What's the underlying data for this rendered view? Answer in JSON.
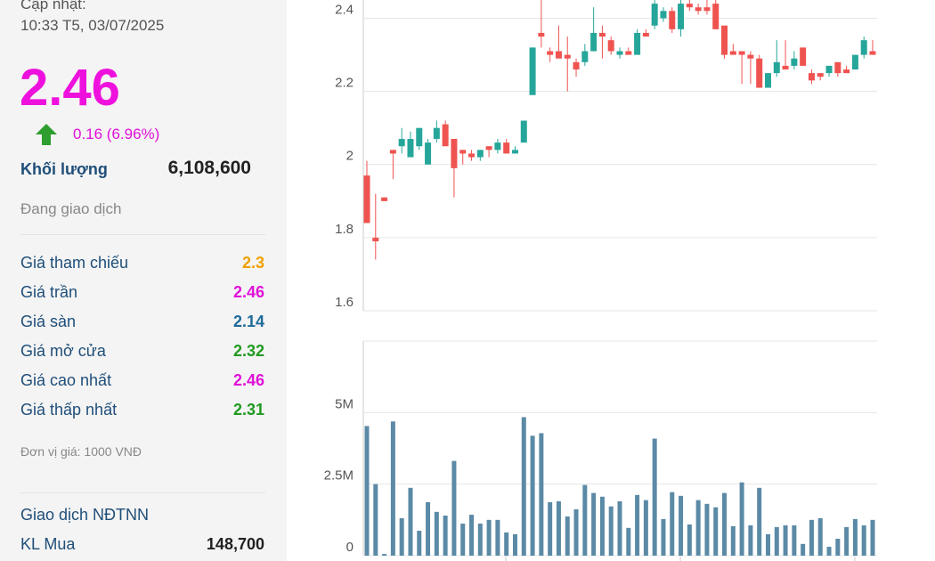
{
  "panel": {
    "updated_label": "Cập nhật:",
    "updated_time": "10:33 T5, 03/07/2025",
    "price": "2.46",
    "price_color": "#ee11dd",
    "change": "0.16 (6.96%)",
    "volume_label": "Khối lượng",
    "volume": "6,108,600",
    "status": "Đang giao dịch",
    "rows": [
      {
        "label": "Giá tham chiếu",
        "value": "2.3",
        "color": "#f0a000"
      },
      {
        "label": "Giá trần",
        "value": "2.46",
        "color": "#e010d8"
      },
      {
        "label": "Giá sàn",
        "value": "2.14",
        "color": "#1e6b9a"
      },
      {
        "label": "Giá mở cửa",
        "value": "2.32",
        "color": "#1f9a1f"
      },
      {
        "label": "Giá cao nhất",
        "value": "2.46",
        "color": "#e010d8"
      },
      {
        "label": "Giá thấp nhất",
        "value": "2.31",
        "color": "#1f9a1f"
      }
    ],
    "unit_note": "Đơn vị giá: 1000 VNĐ",
    "foreign_title": "Giao dịch NĐTNN",
    "foreign_buy_label": "KL Mua",
    "foreign_buy": "148,700"
  },
  "chart_data": [
    {
      "type": "candlestick",
      "up_color": "#26a69a",
      "down_color": "#ef5350",
      "ylim": [
        1.6,
        2.45
      ],
      "yticks": [
        1.6,
        1.8,
        2,
        2.2,
        2.4
      ],
      "grid": true,
      "open": [
        1.97,
        1.8,
        1.91,
        2.04,
        2.05,
        2.02,
        2.05,
        2.0,
        2.07,
        2.11,
        2.07,
        2.04,
        2.03,
        2.02,
        2.05,
        2.04,
        2.06,
        2.03,
        2.06,
        2.19,
        2.36,
        2.31,
        2.31,
        2.3,
        2.28,
        2.28,
        2.31,
        2.36,
        2.34,
        2.3,
        2.31,
        2.3,
        2.36,
        2.38,
        2.4,
        2.42,
        2.37,
        2.44,
        2.43,
        2.43,
        2.44,
        2.38,
        2.31,
        2.31,
        2.3,
        2.29,
        2.21,
        2.25,
        2.27,
        2.27,
        2.32,
        2.25,
        2.25,
        2.25,
        2.28,
        2.26,
        2.26,
        2.3,
        2.31
      ],
      "high": [
        2.01,
        1.92,
        1.91,
        2.04,
        2.1,
        2.09,
        2.1,
        2.07,
        2.12,
        2.12,
        2.07,
        2.04,
        2.04,
        2.04,
        2.05,
        2.07,
        2.07,
        2.05,
        2.12,
        2.32,
        2.45,
        2.32,
        2.38,
        2.35,
        2.29,
        2.33,
        2.43,
        2.38,
        2.35,
        2.32,
        2.32,
        2.37,
        2.37,
        2.45,
        2.43,
        2.43,
        2.45,
        2.45,
        2.44,
        2.45,
        2.45,
        2.38,
        2.33,
        2.31,
        2.31,
        2.3,
        2.25,
        2.34,
        2.34,
        2.31,
        2.32,
        2.26,
        2.25,
        2.27,
        2.28,
        2.27,
        2.3,
        2.35,
        2.34
      ],
      "low": [
        1.84,
        1.74,
        1.9,
        1.96,
        2.03,
        2.02,
        2.04,
        2.0,
        2.06,
        2.05,
        1.91,
        2.0,
        2.01,
        2.01,
        2.02,
        2.03,
        2.03,
        2.03,
        2.06,
        2.19,
        2.32,
        2.28,
        2.29,
        2.2,
        2.24,
        2.27,
        2.31,
        2.29,
        2.3,
        2.29,
        2.3,
        2.3,
        2.35,
        2.37,
        2.39,
        2.36,
        2.35,
        2.42,
        2.41,
        2.41,
        2.37,
        2.29,
        2.3,
        2.22,
        2.22,
        2.21,
        2.21,
        2.24,
        2.26,
        2.26,
        2.27,
        2.22,
        2.23,
        2.24,
        2.24,
        2.25,
        2.26,
        2.29,
        2.3
      ],
      "close": [
        1.84,
        1.79,
        1.9,
        2.03,
        2.07,
        2.07,
        2.1,
        2.06,
        2.1,
        2.05,
        1.99,
        2.03,
        2.02,
        2.04,
        2.04,
        2.06,
        2.03,
        2.04,
        2.12,
        2.32,
        2.35,
        2.3,
        2.29,
        2.29,
        2.26,
        2.31,
        2.36,
        2.35,
        2.31,
        2.31,
        2.3,
        2.36,
        2.35,
        2.44,
        2.42,
        2.37,
        2.44,
        2.43,
        2.42,
        2.42,
        2.37,
        2.3,
        2.3,
        2.3,
        2.29,
        2.21,
        2.25,
        2.28,
        2.26,
        2.29,
        2.27,
        2.23,
        2.24,
        2.27,
        2.25,
        2.25,
        2.3,
        2.34,
        2.3
      ]
    },
    {
      "type": "bar",
      "color": "#5b8aa6",
      "ylim": [
        0,
        7500000
      ],
      "yticks": [
        0,
        {
          "value": 2500000,
          "label": "2.5M"
        },
        {
          "value": 5000000,
          "label": "5M"
        }
      ],
      "grid": true,
      "values": [
        4530000,
        2500000,
        60000,
        4690000,
        1310000,
        2370000,
        870000,
        1870000,
        1530000,
        1400000,
        3310000,
        1120000,
        1430000,
        1120000,
        1250000,
        1250000,
        810000,
        750000,
        4840000,
        4190000,
        4280000,
        1870000,
        1900000,
        1370000,
        1620000,
        2470000,
        2190000,
        2060000,
        1720000,
        1900000,
        970000,
        2120000,
        1940000,
        4090000,
        1280000,
        2220000,
        2090000,
        1090000,
        1940000,
        1810000,
        1690000,
        2190000,
        1030000,
        2560000,
        1060000,
        2370000,
        750000,
        1000000,
        1060000,
        1060000,
        410000,
        1250000,
        1310000,
        310000,
        590000,
        1000000,
        1280000,
        1060000,
        1250000
      ]
    }
  ]
}
